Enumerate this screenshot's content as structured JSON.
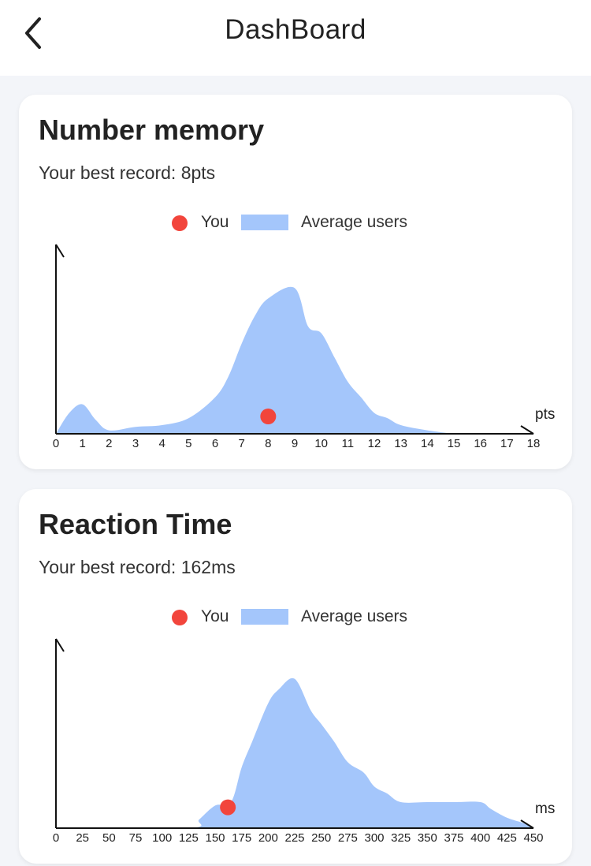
{
  "header": {
    "title": "DashBoard",
    "back_icon": "chevron-left-icon"
  },
  "colors": {
    "you": "#f2453c",
    "average": "#a4c6fb",
    "axis": "#111111"
  },
  "cards": [
    {
      "title": "Number memory",
      "best_record": "Your best record: 8pts",
      "legend": {
        "you": "You",
        "average": "Average users"
      },
      "unit": "pts"
    },
    {
      "title": "Reaction Time",
      "best_record": "Your best record: 162ms",
      "legend": {
        "you": "You",
        "average": "Average users"
      },
      "unit": "ms"
    }
  ],
  "chart_data": [
    {
      "type": "area",
      "xlabel": "pts",
      "ylabel": "",
      "xlim": [
        0,
        18
      ],
      "ylim": [
        0,
        100
      ],
      "x_ticks": [
        0,
        1,
        2,
        3,
        4,
        5,
        6,
        7,
        8,
        9,
        10,
        11,
        12,
        13,
        14,
        15,
        16,
        17,
        18
      ],
      "series": [
        {
          "name": "Average users",
          "x": [
            0,
            0.5,
            1,
            1.5,
            2,
            3,
            4,
            5,
            6,
            6.5,
            7,
            7.5,
            8,
            9,
            9.5,
            10,
            10.5,
            11,
            11.5,
            12,
            12.5,
            13,
            14,
            15
          ],
          "y": [
            0,
            12,
            17,
            8,
            2,
            4,
            5,
            9,
            21,
            33,
            52,
            68,
            78,
            84,
            62,
            58,
            44,
            30,
            21,
            12,
            9,
            5,
            2,
            0
          ]
        },
        {
          "name": "You",
          "x": [
            8
          ],
          "y": [
            10
          ]
        }
      ]
    },
    {
      "type": "area",
      "xlabel": "ms",
      "ylabel": "",
      "xlim": [
        0,
        450
      ],
      "ylim": [
        0,
        100
      ],
      "x_ticks": [
        0,
        25,
        50,
        75,
        100,
        125,
        150,
        175,
        200,
        225,
        250,
        275,
        300,
        325,
        350,
        375,
        400,
        425,
        450
      ],
      "series": [
        {
          "name": "Average users",
          "x": [
            0,
            125,
            135,
            150,
            165,
            175,
            185,
            200,
            210,
            225,
            240,
            250,
            262,
            275,
            290,
            300,
            312,
            325,
            350,
            375,
            400,
            410,
            425,
            440,
            450
          ],
          "y": [
            0,
            0,
            5,
            13,
            15,
            35,
            50,
            72,
            80,
            86,
            68,
            60,
            50,
            38,
            32,
            24,
            20,
            15,
            15,
            15,
            15,
            11,
            6,
            3,
            0
          ]
        },
        {
          "name": "You",
          "x": [
            162
          ],
          "y": [
            12
          ]
        }
      ]
    }
  ]
}
